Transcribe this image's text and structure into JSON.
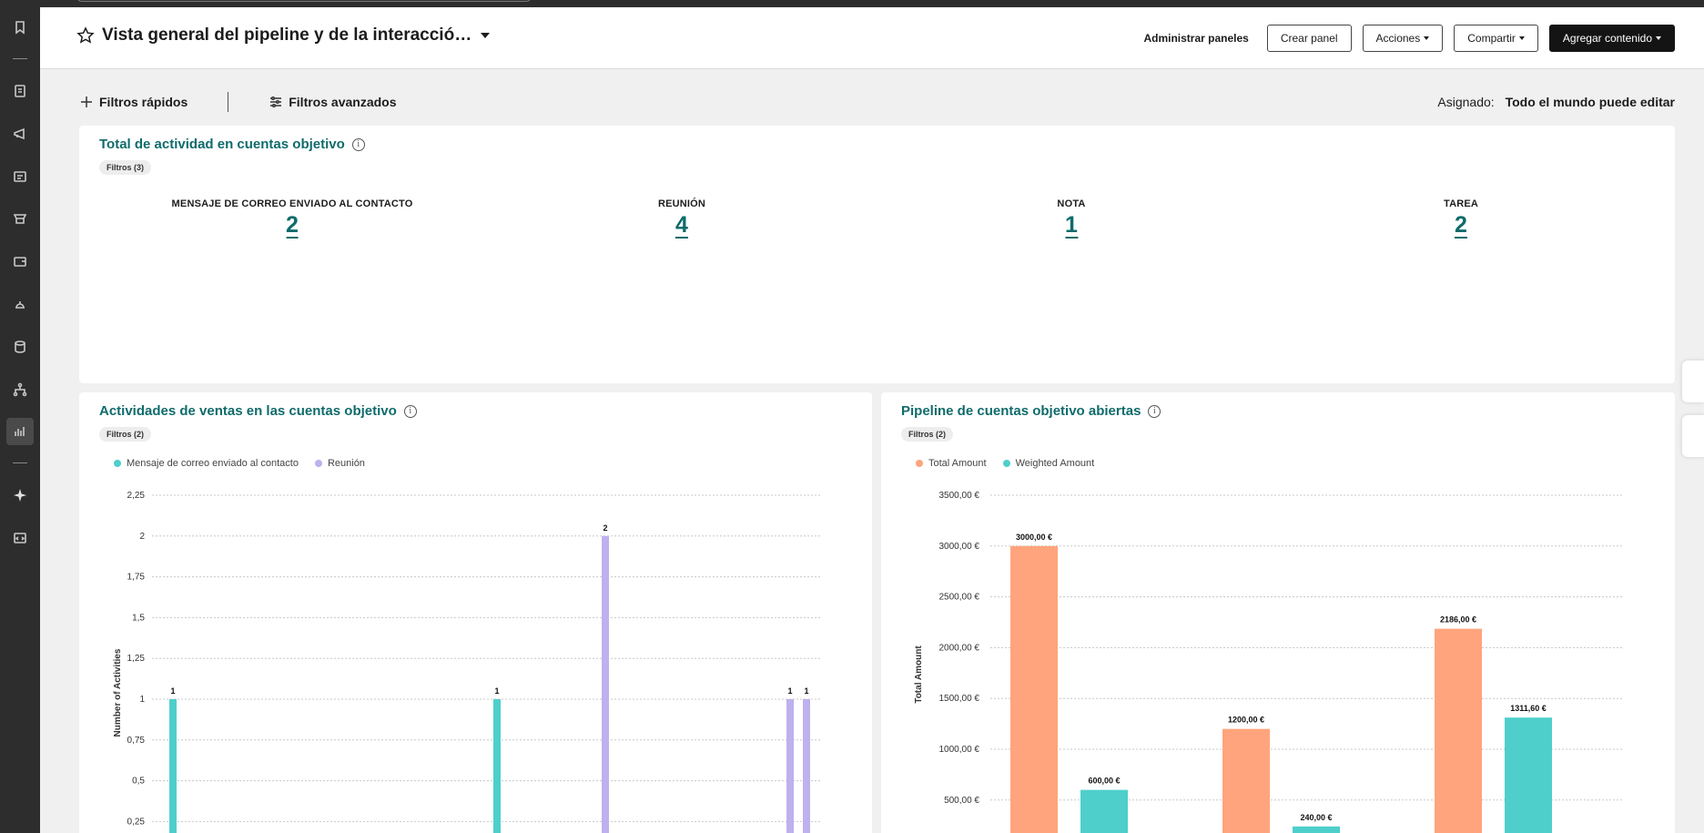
{
  "header": {
    "title": "Vista general del pipeline y de la interacció…",
    "manage_label": "Administrar paneles",
    "create_label": "Crear panel",
    "actions_label": "Acciones",
    "share_label": "Compartir",
    "add_label": "Agregar contenido"
  },
  "filters": {
    "quick_label": "Filtros rápidos",
    "advanced_label": "Filtros avanzados",
    "assigned_label": "Asignado:",
    "assigned_value": "Todo el mundo puede editar"
  },
  "activity_card": {
    "title": "Total de actividad en cuentas objetivo",
    "chip": "Filtros (3)",
    "kpis": [
      {
        "label": "MENSAJE DE CORREO ENVIADO AL CONTACTO",
        "value": "2"
      },
      {
        "label": "REUNIÓN",
        "value": "4"
      },
      {
        "label": "NOTA",
        "value": "1"
      },
      {
        "label": "TAREA",
        "value": "2"
      }
    ]
  },
  "sales_card": {
    "title": "Actividades de ventas en las cuentas objetivo",
    "chip": "Filtros (2)"
  },
  "pipeline_card": {
    "title": "Pipeline de cuentas objetivo abiertas",
    "chip": "Filtros (2)"
  },
  "chart_data": [
    {
      "type": "bar",
      "ylabel": "Number of Activities",
      "ylim": [
        0,
        2.25
      ],
      "yticks": [
        "0,25",
        "0,5",
        "0,75",
        "1",
        "1,25",
        "1,5",
        "1,75",
        "2",
        "2,25"
      ],
      "ytick_values": [
        0.25,
        0.5,
        0.75,
        1,
        1.25,
        1.5,
        1.75,
        2,
        2.25
      ],
      "series": [
        {
          "name": "Mensaje de correo enviado al contacto",
          "color": "#4ecfcb"
        },
        {
          "name": "Reunión",
          "color": "#bfb0ef"
        }
      ],
      "bars": [
        {
          "series": 0,
          "value": 1,
          "label": "1"
        },
        {
          "series": 0,
          "value": 1,
          "label": "1"
        },
        {
          "series": 1,
          "value": 2,
          "label": "2"
        },
        {
          "series": 1,
          "value": 1,
          "label": "1"
        },
        {
          "series": 1,
          "value": 1,
          "label": "1"
        }
      ],
      "grid": true,
      "legend": "top-left"
    },
    {
      "type": "bar",
      "ylabel": "Total Amount",
      "ylim": [
        0,
        3500
      ],
      "yticks": [
        "500,00 €",
        "1000,00 €",
        "1500,00 €",
        "2000,00 €",
        "2500,00 €",
        "3000,00 €",
        "3500,00 €"
      ],
      "ytick_values": [
        500,
        1000,
        1500,
        2000,
        2500,
        3000,
        3500
      ],
      "series": [
        {
          "name": "Total Amount",
          "color": "#ffa47c",
          "values": [
            3000,
            1200,
            2186
          ],
          "labels": [
            "3000,00 €",
            "1200,00 €",
            "2186,00 €"
          ]
        },
        {
          "name": "Weighted Amount",
          "color": "#4ecfcb",
          "values": [
            600,
            240,
            1311.6
          ],
          "labels": [
            "600,00 €",
            "240,00 €",
            "1311,60 €"
          ]
        }
      ],
      "grid": true,
      "legend": "top-left"
    }
  ]
}
